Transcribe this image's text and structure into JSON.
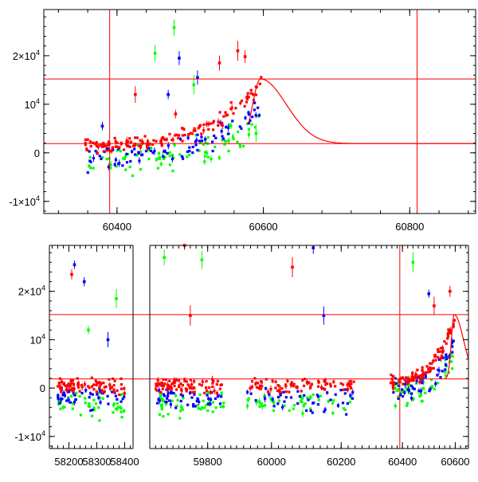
{
  "chart_data": [
    {
      "type": "scatter",
      "title": "",
      "xlabel": "",
      "ylabel": "",
      "xlim": [
        60300,
        60890
      ],
      "ylim": [
        -12500,
        29500
      ],
      "xticks": [
        {
          "v": 60400,
          "label": "60400"
        },
        {
          "v": 60600,
          "label": "60600"
        },
        {
          "v": 60800,
          "label": "60800"
        }
      ],
      "yticks": [
        {
          "v": -10000,
          "label": "-1×10",
          "sup": "4"
        },
        {
          "v": 0,
          "label": "0",
          "sup": ""
        },
        {
          "v": 10000,
          "label": "10",
          "sup": "4"
        },
        {
          "v": 20000,
          "label": "2×10",
          "sup": "4"
        }
      ],
      "hlines": [
        15200,
        1900
      ],
      "vlines": [
        60390,
        60810
      ],
      "model_curve": {
        "peak_x": 60596,
        "peak_y": 15200,
        "base_y": 1900,
        "width": 50
      },
      "series": [
        {
          "color": "#00ff00",
          "clusters": [
            {
              "x0": 60360,
              "x1": 60595,
              "base": -1500,
              "rise": 8000,
              "spread": 4500,
              "n": 90
            }
          ],
          "outliers": [
            [
              60478,
              25800
            ],
            [
              60452,
              20500
            ],
            [
              60505,
              14000
            ],
            [
              60590,
              4000
            ]
          ]
        },
        {
          "color": "#0000ff",
          "clusters": [
            {
              "x0": 60360,
              "x1": 60595,
              "base": -500,
              "rise": 9000,
              "spread": 4000,
              "n": 90
            }
          ],
          "outliers": [
            [
              60485,
              19500
            ],
            [
              60510,
              15500
            ],
            [
              60470,
              12000
            ],
            [
              60380,
              5500
            ]
          ]
        },
        {
          "color": "#ff0000",
          "clusters": [
            {
              "x0": 60355,
              "x1": 60598,
              "base": 1500,
              "rise": 12500,
              "spread": 2200,
              "n": 150
            }
          ],
          "outliers": [
            [
              60565,
              21000
            ],
            [
              60540,
              18500
            ],
            [
              60425,
              12000
            ],
            [
              60575,
              19800
            ],
            [
              60480,
              8000
            ]
          ]
        }
      ]
    },
    {
      "type": "scatter",
      "title": "",
      "xlabel": "",
      "ylabel": "",
      "broken_axis": true,
      "segments": [
        {
          "xlim": [
            58130,
            58430
          ],
          "xticks": [
            {
              "v": 58200,
              "label": "58200"
            },
            {
              "v": 58300,
              "label": "58300"
            },
            {
              "v": 58400,
              "label": "58400"
            }
          ]
        },
        {
          "xlim": [
            59600,
            59900
          ],
          "xticks": [
            {
              "v": 59800,
              "label": "59800"
            }
          ]
        },
        {
          "xlim": [
            59900,
            60300
          ],
          "xticks": [
            {
              "v": 60000,
              "label": "60000"
            },
            {
              "v": 60200,
              "label": "60200"
            }
          ]
        },
        {
          "xlim": [
            60300,
            60650
          ],
          "xticks": [
            {
              "v": 60400,
              "label": "60400"
            },
            {
              "v": 60600,
              "label": "60600"
            }
          ]
        }
      ],
      "ylim": [
        -12500,
        29500
      ],
      "yticks": [
        {
          "v": -10000,
          "label": "-1×10",
          "sup": "4"
        },
        {
          "v": 0,
          "label": "0",
          "sup": ""
        },
        {
          "v": 10000,
          "label": "10",
          "sup": "4"
        },
        {
          "v": 20000,
          "label": "2×10",
          "sup": "4"
        }
      ],
      "hlines": [
        15200,
        1900
      ],
      "vlines": [
        60390
      ],
      "model_curve": {
        "peak_x": 60596,
        "peak_y": 15200,
        "base_y": 1900,
        "width": 50
      },
      "series": [
        {
          "color": "#00ff00",
          "clusters": [
            {
              "x0": 58160,
              "x1": 58400,
              "base": -3500,
              "rise": 0,
              "spread": 4000,
              "n": 45
            },
            {
              "x0": 59620,
              "x1": 59860,
              "base": -3500,
              "rise": 0,
              "spread": 4000,
              "n": 45
            },
            {
              "x0": 59930,
              "x1": 60240,
              "base": -3500,
              "rise": 0,
              "spread": 3500,
              "n": 45
            },
            {
              "x0": 60360,
              "x1": 60595,
              "base": -1500,
              "rise": 8000,
              "spread": 4500,
              "n": 50
            }
          ],
          "outliers": [
            [
              58370,
              18500
            ],
            [
              58270,
              12000
            ],
            [
              59650,
              27000
            ],
            [
              60440,
              26000
            ],
            [
              59780,
              26500
            ]
          ]
        },
        {
          "color": "#0000ff",
          "clusters": [
            {
              "x0": 58160,
              "x1": 58400,
              "base": -2000,
              "rise": 0,
              "spread": 3500,
              "n": 45
            },
            {
              "x0": 59620,
              "x1": 59860,
              "base": -2000,
              "rise": 0,
              "spread": 3500,
              "n": 45
            },
            {
              "x0": 59930,
              "x1": 60240,
              "base": -2500,
              "rise": 0,
              "spread": 3500,
              "n": 45
            },
            {
              "x0": 60360,
              "x1": 60595,
              "base": -500,
              "rise": 9000,
              "spread": 4000,
              "n": 50
            }
          ],
          "outliers": [
            [
              58220,
              25500
            ],
            [
              58255,
              22000
            ],
            [
              60120,
              29000
            ],
            [
              60150,
              15000
            ],
            [
              60500,
              19500
            ],
            [
              58340,
              10000
            ]
          ]
        },
        {
          "color": "#ff0000",
          "clusters": [
            {
              "x0": 58160,
              "x1": 58400,
              "base": 500,
              "rise": 0,
              "spread": 2200,
              "n": 80
            },
            {
              "x0": 59620,
              "x1": 59860,
              "base": 500,
              "rise": 0,
              "spread": 2200,
              "n": 80
            },
            {
              "x0": 59930,
              "x1": 60240,
              "base": 500,
              "rise": 0,
              "spread": 2200,
              "n": 80
            },
            {
              "x0": 60355,
              "x1": 60598,
              "base": 1500,
              "rise": 12500,
              "spread": 2200,
              "n": 90
            }
          ],
          "outliers": [
            [
              58210,
              23500
            ],
            [
              59720,
              29500
            ],
            [
              60060,
              25000
            ],
            [
              59740,
              15000
            ],
            [
              60580,
              20000
            ],
            [
              60520,
              17000
            ]
          ]
        }
      ]
    }
  ]
}
